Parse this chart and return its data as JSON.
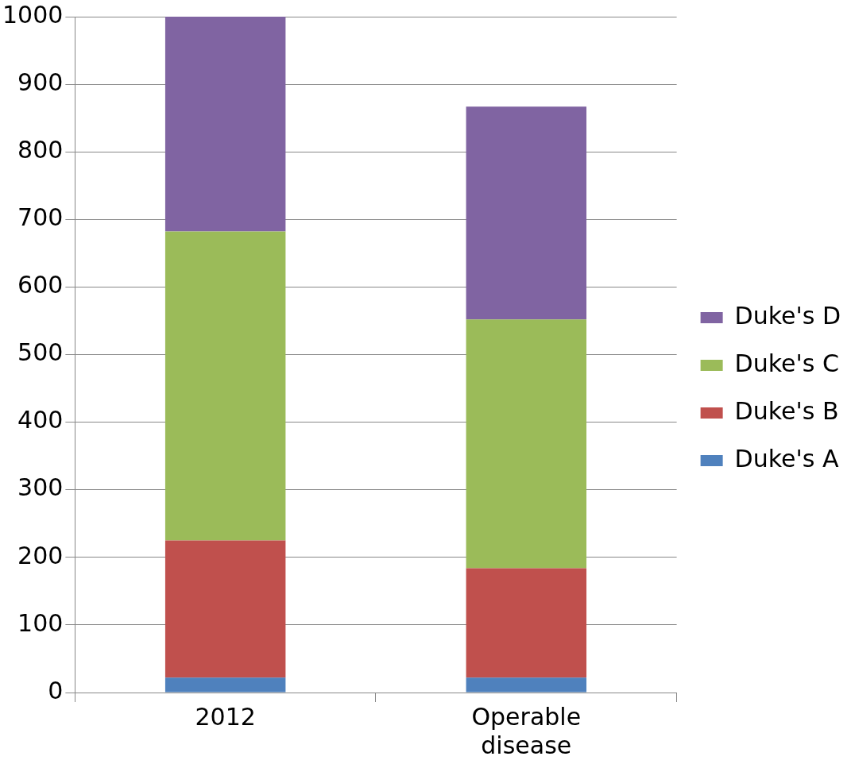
{
  "chart_data": {
    "type": "bar",
    "stacked": true,
    "categories": [
      "2012",
      "Operable disease"
    ],
    "series": [
      {
        "name": "Duke's A",
        "color": "#4f81bd",
        "values": [
          22,
          22
        ]
      },
      {
        "name": "Duke's B",
        "color": "#c0504d",
        "values": [
          203,
          162
        ]
      },
      {
        "name": "Duke's C",
        "color": "#9bbb59",
        "values": [
          457,
          368
        ]
      },
      {
        "name": "Duke's D",
        "color": "#8064a2",
        "values": [
          318,
          315
        ]
      }
    ],
    "ylim": [
      0,
      1000
    ],
    "yticks": [
      0,
      100,
      200,
      300,
      400,
      500,
      600,
      700,
      800,
      900,
      1000
    ],
    "grid": "y",
    "legend": "right"
  }
}
